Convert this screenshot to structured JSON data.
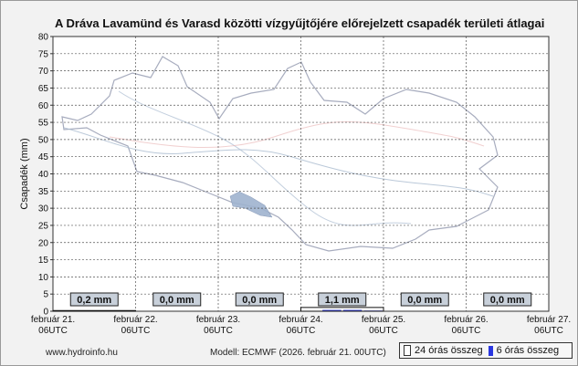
{
  "header": {
    "title": "A Dráva Lavamünd és Varasd közötti vízgyűjtőjére előrejelzett csapadék területi átlagai"
  },
  "footer": {
    "site": "www.hydroinfo.hu",
    "model": "Modell: ECMWF (2026. február 21. 00UTC)"
  },
  "legend": {
    "items": [
      "24 órás összeg",
      "6 órás összeg"
    ]
  },
  "colors": {
    "plot_bg": "#ffffff",
    "grid": "#555555",
    "bar_6h": "#2a37e0",
    "label_box": "#c8d0da",
    "map_outline": "#8a90a8",
    "rivers": "#aabbd0",
    "borders": "#e8b0b0",
    "lakes": "#9fb3cf"
  },
  "chart_data": {
    "type": "bar",
    "title": "A Dráva Lavamünd és Varasd közötti vízgyűjtőjére előrejelzett csapadék területi átlagai",
    "ylabel": "Csapadék (mm)",
    "xlabel": "",
    "ylim": [
      0,
      80
    ],
    "yticks": [
      0,
      5,
      10,
      15,
      20,
      25,
      30,
      35,
      40,
      45,
      50,
      55,
      60,
      65,
      70,
      75,
      80
    ],
    "grid": true,
    "x_ticks": [
      {
        "date": "február 21.",
        "time": "06UTC"
      },
      {
        "date": "február 22.",
        "time": "06UTC"
      },
      {
        "date": "február 23.",
        "time": "06UTC"
      },
      {
        "date": "február 24.",
        "time": "06UTC"
      },
      {
        "date": "február 25.",
        "time": "06UTC"
      },
      {
        "date": "február 26.",
        "time": "06UTC"
      },
      {
        "date": "február 27.",
        "time": "06UTC"
      }
    ],
    "categories": [
      "február 21.–22.",
      "február 22.–23.",
      "február 23.–24.",
      "február 24.–25.",
      "február 25.–26.",
      "február 26.–27."
    ],
    "series": [
      {
        "name": "24 órás összeg",
        "values": [
          0.2,
          0.0,
          0.0,
          1.1,
          0.0,
          0.0
        ]
      }
    ],
    "daily_labels": [
      "0,2 mm",
      "0,0 mm",
      "0,0 mm",
      "1,1 mm",
      "0,0 mm",
      "0,0 mm"
    ],
    "six_hour_values": [
      0.1,
      0.1,
      0,
      0,
      0,
      0,
      0,
      0,
      0,
      0,
      0,
      0,
      0.1,
      0.4,
      0.4,
      0.2,
      0,
      0,
      0,
      0,
      0,
      0,
      0,
      0
    ],
    "legend_position": "bottom-right"
  }
}
